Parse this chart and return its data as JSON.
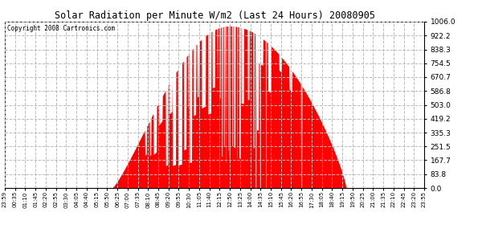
{
  "title": "Solar Radiation per Minute W/m2 (Last 24 Hours) 20080905",
  "copyright": "Copyright 2008 Cartronics.com",
  "background_color": "#ffffff",
  "plot_background": "#ffffff",
  "bar_color": "#ff0000",
  "grid_color": "#bbbbbb",
  "bottom_dashed_color": "#ff0000",
  "ymin": 0.0,
  "ymax": 1006.0,
  "yticks": [
    0.0,
    83.8,
    167.7,
    251.5,
    335.3,
    419.2,
    503.0,
    586.8,
    670.7,
    754.5,
    838.3,
    922.2,
    1006.0
  ],
  "xtick_labels": [
    "23:59",
    "00:35",
    "01:10",
    "01:45",
    "02:20",
    "02:55",
    "03:30",
    "04:05",
    "04:40",
    "05:15",
    "05:50",
    "06:25",
    "07:00",
    "07:35",
    "08:10",
    "08:45",
    "09:20",
    "09:55",
    "10:30",
    "11:05",
    "11:40",
    "12:15",
    "12:50",
    "13:25",
    "14:00",
    "14:35",
    "15:10",
    "15:45",
    "16:20",
    "16:55",
    "17:30",
    "18:05",
    "18:40",
    "19:15",
    "19:50",
    "20:25",
    "21:00",
    "21:35",
    "22:10",
    "22:45",
    "23:20",
    "23:55"
  ],
  "n_points": 1440,
  "sunrise_minute": 366,
  "sunset_minute": 1170
}
